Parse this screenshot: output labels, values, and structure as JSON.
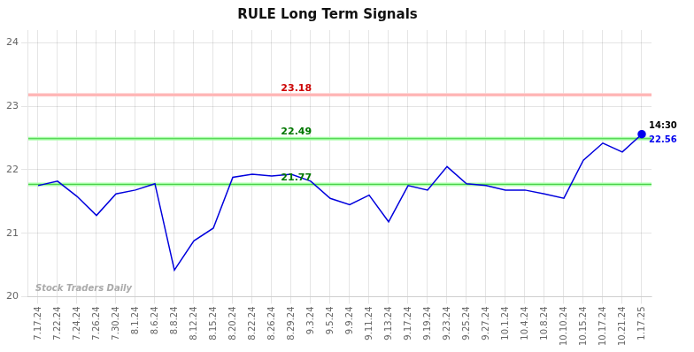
{
  "chart_data": {
    "type": "line",
    "title": "RULE Long Term Signals",
    "categories": [
      "7.17.24",
      "7.22.24",
      "7.24.24",
      "7.26.24",
      "7.30.24",
      "8.1.24",
      "8.6.24",
      "8.8.24",
      "8.12.24",
      "8.15.24",
      "8.20.24",
      "8.22.24",
      "8.26.24",
      "8.29.24",
      "9.3.24",
      "9.5.24",
      "9.9.24",
      "9.11.24",
      "9.13.24",
      "9.17.24",
      "9.19.24",
      "9.23.24",
      "9.25.24",
      "9.27.24",
      "10.1.24",
      "10.4.24",
      "10.8.24",
      "10.10.24",
      "10.15.24",
      "10.17.24",
      "10.21.24",
      "1.17.25"
    ],
    "values": [
      21.75,
      21.82,
      21.58,
      21.28,
      21.62,
      21.68,
      21.78,
      20.42,
      20.88,
      21.08,
      21.88,
      21.93,
      21.9,
      21.93,
      21.82,
      21.55,
      21.45,
      21.6,
      21.18,
      21.75,
      21.68,
      22.05,
      21.78,
      21.75,
      21.68,
      21.68,
      21.62,
      21.55,
      22.15,
      22.42,
      22.28,
      22.56
    ],
    "color": "#0000dd",
    "ylim": [
      20,
      24.2
    ],
    "yticks": [
      20,
      21,
      22,
      23,
      24
    ],
    "grid": true,
    "hlines": [
      {
        "value": 23.18,
        "color": "#ff9999",
        "band_color": "#ffcccc",
        "label_color": "#cc0000"
      },
      {
        "value": 22.49,
        "color": "#44cc44",
        "band_color": "#aaffaa",
        "label_color": "#007700"
      },
      {
        "value": 21.77,
        "color": "#44cc44",
        "band_color": "#aaffaa",
        "label_color": "#007700"
      }
    ],
    "last_point": {
      "value": 22.56,
      "time": "14:30",
      "color": "#0000ee"
    },
    "watermark": "Stock Traders Daily"
  }
}
